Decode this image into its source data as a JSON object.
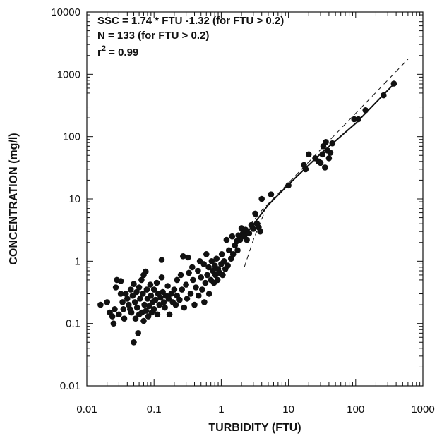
{
  "chart_data": {
    "type": "scatter",
    "title": "",
    "xlabel": "TURBIDITY (FTU)",
    "ylabel": "CONCENTRATION (mg/l)",
    "x_scale": "log",
    "y_scale": "log",
    "xlim": [
      0.01,
      1000
    ],
    "ylim": [
      0.01,
      10000
    ],
    "grid": false,
    "x_ticks": [
      "0.01",
      "0.1",
      "1",
      "10",
      "100",
      "1000"
    ],
    "y_ticks": [
      "0.01",
      "0.1",
      "1",
      "10",
      "100",
      "1000",
      "10000"
    ],
    "annotations": {
      "line1": "SSC = 1.74 * FTU -1.32 (for FTU > 0.2)",
      "line2": "N = 133 (for FTU > 0.2)",
      "line3_r": "r",
      "line3_sup": "2",
      "line3_rest": " = 0.99"
    },
    "series": [
      {
        "marker": "circle",
        "points": [
          [
            0.016,
            0.2
          ],
          [
            0.02,
            0.22
          ],
          [
            0.022,
            0.15
          ],
          [
            0.024,
            0.13
          ],
          [
            0.025,
            0.1
          ],
          [
            0.026,
            0.17
          ],
          [
            0.027,
            0.38
          ],
          [
            0.028,
            0.5
          ],
          [
            0.03,
            0.14
          ],
          [
            0.032,
            0.48
          ],
          [
            0.032,
            0.3
          ],
          [
            0.034,
            0.22
          ],
          [
            0.035,
            0.17
          ],
          [
            0.036,
            0.12
          ],
          [
            0.038,
            0.3
          ],
          [
            0.04,
            0.25
          ],
          [
            0.042,
            0.2
          ],
          [
            0.044,
            0.17
          ],
          [
            0.045,
            0.35
          ],
          [
            0.046,
            0.15
          ],
          [
            0.048,
            0.28
          ],
          [
            0.05,
            0.43
          ],
          [
            0.05,
            0.05
          ],
          [
            0.052,
            0.22
          ],
          [
            0.053,
            0.12
          ],
          [
            0.055,
            0.32
          ],
          [
            0.056,
            0.18
          ],
          [
            0.058,
            0.07
          ],
          [
            0.06,
            0.38
          ],
          [
            0.06,
            0.14
          ],
          [
            0.062,
            0.25
          ],
          [
            0.065,
            0.5
          ],
          [
            0.066,
            0.15
          ],
          [
            0.068,
            0.3
          ],
          [
            0.07,
            0.6
          ],
          [
            0.07,
            0.11
          ],
          [
            0.072,
            0.2
          ],
          [
            0.075,
            0.68
          ],
          [
            0.076,
            0.16
          ],
          [
            0.078,
            0.35
          ],
          [
            0.08,
            0.25
          ],
          [
            0.082,
            0.13
          ],
          [
            0.085,
            0.19
          ],
          [
            0.088,
            0.42
          ],
          [
            0.09,
            0.28
          ],
          [
            0.092,
            0.15
          ],
          [
            0.095,
            0.22
          ],
          [
            0.1,
            0.35
          ],
          [
            0.1,
            0.17
          ],
          [
            0.105,
            0.24
          ],
          [
            0.11,
            0.45
          ],
          [
            0.112,
            0.14
          ],
          [
            0.115,
            0.3
          ],
          [
            0.12,
            0.2
          ],
          [
            0.125,
            0.26
          ],
          [
            0.13,
            1.05
          ],
          [
            0.13,
            0.55
          ],
          [
            0.135,
            0.32
          ],
          [
            0.14,
            0.22
          ],
          [
            0.145,
            0.18
          ],
          [
            0.15,
            0.28
          ],
          [
            0.16,
            0.4
          ],
          [
            0.165,
            0.25
          ],
          [
            0.17,
            0.14
          ],
          [
            0.18,
            0.3
          ],
          [
            0.19,
            0.22
          ],
          [
            0.2,
            0.35
          ],
          [
            0.21,
            0.2
          ],
          [
            0.22,
            0.5
          ],
          [
            0.22,
            0.28
          ],
          [
            0.24,
            0.24
          ],
          [
            0.25,
            0.6
          ],
          [
            0.26,
            0.35
          ],
          [
            0.27,
            1.2
          ],
          [
            0.28,
            0.18
          ],
          [
            0.3,
            0.42
          ],
          [
            0.31,
            0.25
          ],
          [
            0.32,
            1.15
          ],
          [
            0.33,
            0.65
          ],
          [
            0.35,
            0.3
          ],
          [
            0.37,
            0.8
          ],
          [
            0.38,
            0.5
          ],
          [
            0.4,
            0.2
          ],
          [
            0.42,
            0.38
          ],
          [
            0.45,
            0.7
          ],
          [
            0.46,
            0.28
          ],
          [
            0.48,
            1.0
          ],
          [
            0.5,
            0.55
          ],
          [
            0.52,
            0.35
          ],
          [
            0.55,
            0.9
          ],
          [
            0.56,
            0.22
          ],
          [
            0.58,
            0.45
          ],
          [
            0.6,
            1.3
          ],
          [
            0.62,
            0.6
          ],
          [
            0.65,
            0.8
          ],
          [
            0.66,
            0.3
          ],
          [
            0.7,
            0.5
          ],
          [
            0.72,
            1.0
          ],
          [
            0.75,
            0.7
          ],
          [
            0.78,
            0.45
          ],
          [
            0.8,
            0.85
          ],
          [
            0.82,
            0.6
          ],
          [
            0.85,
            1.1
          ],
          [
            0.88,
            0.5
          ],
          [
            0.9,
            0.75
          ],
          [
            0.95,
            0.65
          ],
          [
            1.0,
            0.9
          ],
          [
            1.02,
            1.3
          ],
          [
            1.05,
            0.6
          ],
          [
            1.1,
            1.0
          ],
          [
            1.15,
            0.75
          ],
          [
            1.2,
            2.2
          ],
          [
            1.25,
            0.85
          ],
          [
            1.3,
            1.5
          ],
          [
            1.4,
            1.1
          ],
          [
            1.45,
            2.5
          ],
          [
            1.5,
            1.3
          ],
          [
            1.6,
            1.8
          ],
          [
            1.7,
            2.1
          ],
          [
            1.75,
            1.5
          ],
          [
            1.8,
            2.6
          ],
          [
            1.9,
            2.2
          ],
          [
            2.0,
            3.4
          ],
          [
            2.1,
            2.8
          ],
          [
            2.2,
            2.5
          ],
          [
            2.3,
            3.2
          ],
          [
            2.4,
            2.2
          ],
          [
            2.6,
            2.8
          ],
          [
            2.8,
            3.8
          ],
          [
            3.0,
            3.3
          ],
          [
            3.2,
            5.8
          ],
          [
            3.4,
            4.0
          ],
          [
            3.6,
            3.5
          ],
          [
            3.8,
            3.0
          ],
          [
            4.0,
            10.0
          ],
          [
            5.5,
            11.8
          ],
          [
            10.0,
            16.5
          ],
          [
            17.0,
            35.0
          ],
          [
            18.0,
            30.0
          ],
          [
            20.0,
            52.0
          ],
          [
            25.0,
            45.0
          ],
          [
            28.0,
            40.0
          ],
          [
            30.0,
            38.0
          ],
          [
            32.0,
            52.0
          ],
          [
            33.0,
            70.0
          ],
          [
            35.0,
            32.0
          ],
          [
            36.0,
            82.0
          ],
          [
            38.0,
            60.0
          ],
          [
            40.0,
            45.0
          ],
          [
            42.0,
            55.0
          ],
          [
            45.0,
            78.0
          ],
          [
            95.0,
            190.0
          ],
          [
            110.0,
            190.0
          ],
          [
            140.0,
            265.0
          ],
          [
            260.0,
            460.0
          ],
          [
            370.0,
            710.0
          ]
        ]
      }
    ],
    "fit_line": {
      "style": "solid",
      "points": [
        [
          2.0,
          2.2
        ],
        [
          5.0,
          8.0
        ],
        [
          10.0,
          17.0
        ],
        [
          30.0,
          53.0
        ],
        [
          100.0,
          163.0
        ],
        [
          380.0,
          720.0
        ]
      ]
    },
    "reference_lines": [
      {
        "style": "dashed",
        "points": [
          [
            1.3,
            1.4
          ],
          [
            2.0,
            2.6
          ],
          [
            4.0,
            6.5
          ],
          [
            600.0,
            1750.0
          ]
        ]
      },
      {
        "style": "dashed",
        "points": [
          [
            2.2,
            0.8
          ],
          [
            3.0,
            2.2
          ],
          [
            4.5,
            6.5
          ]
        ]
      }
    ]
  }
}
